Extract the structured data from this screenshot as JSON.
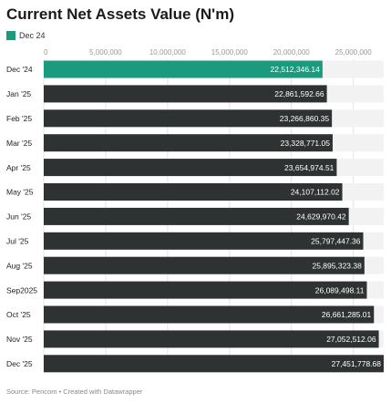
{
  "page": {
    "title": "Current Net Assets Value (N'm)",
    "source": "Source: Pencom • Created with Datawrapper"
  },
  "colors": {
    "highlight": "#1c9a7e",
    "bar": "#2e3233",
    "track": "#f2f2f2",
    "bar_text": "#ffffff",
    "axis_text": "#999999",
    "label_text": "#222222"
  },
  "chart_data": {
    "type": "bar",
    "orientation": "horizontal",
    "title": "Current Net Assets Value (N'm)",
    "legend": [
      {
        "name": "Dec 24",
        "color": "#1c9a7e"
      }
    ],
    "legend_position": "top-left",
    "categories": [
      "Dec '24",
      "Jan '25",
      "Feb '25",
      "Mar '25",
      "Apr '25",
      "May '25",
      "Jun '25",
      "Jul '25",
      "Aug '25",
      "Sep2025",
      "Oct '25",
      "Nov '25",
      "Dec '25"
    ],
    "values": [
      22512346.14,
      22861592.66,
      23266860.35,
      23328771.05,
      23654974.51,
      24107112.02,
      24629970.42,
      25797447.36,
      25895323.38,
      26089498.11,
      26661285.01,
      27052512.06,
      27451778.68
    ],
    "value_labels": [
      "22,512,346.14",
      "22,861,592.66",
      "23,266,860.35",
      "23,328,771.05",
      "23,654,974.51",
      "24,107,112.02",
      "24,629,970.42",
      "25,797,447.36",
      "25,895,323.38",
      "26,089,498.11",
      "26,661,285.01",
      "27,052,512.06",
      "27,451,778.68"
    ],
    "highlight_index": 0,
    "xlim": [
      0,
      27451778.68
    ],
    "x_ticks": [
      0,
      5000000,
      10000000,
      15000000,
      20000000,
      25000000
    ],
    "x_tick_labels": [
      "0",
      "5,000,000",
      "10,000,000",
      "15,000,000",
      "20,000,000",
      "25,000,000"
    ],
    "grid": true
  }
}
